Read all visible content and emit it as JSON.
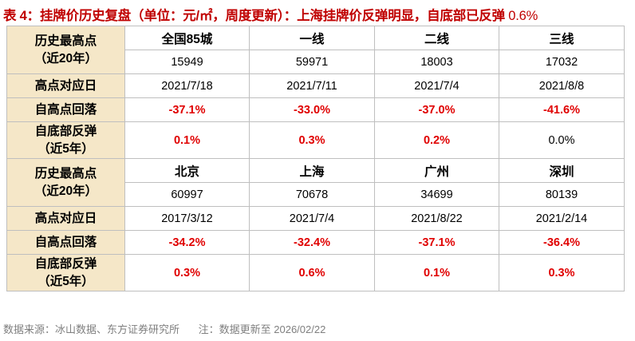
{
  "title": {
    "main": "表 4：挂牌价历史复盘（单位：元/㎡，周度更新）：上海挂牌价反弹明显，自底部已反弹",
    "value": "0.6%"
  },
  "labels": {
    "peak_price": "历史最高点\n（近20年）",
    "peak_date": "高点对应日",
    "drop": "自高点回落",
    "rebound": "自底部反弹\n（近5年）"
  },
  "block1": {
    "headers": [
      "全国85城",
      "一线",
      "二线",
      "三线"
    ],
    "peak_price": [
      "15949",
      "59971",
      "18003",
      "17032"
    ],
    "peak_date": [
      "2021/7/18",
      "2021/7/11",
      "2021/7/4",
      "2021/8/8"
    ],
    "drop": [
      "-37.1%",
      "-33.0%",
      "-37.0%",
      "-41.6%"
    ],
    "rebound": [
      "0.1%",
      "0.3%",
      "0.2%",
      "0.0%"
    ]
  },
  "block2": {
    "headers": [
      "北京",
      "上海",
      "广州",
      "深圳"
    ],
    "peak_price": [
      "60997",
      "70678",
      "34699",
      "80139"
    ],
    "peak_date": [
      "2017/3/12",
      "2021/7/4",
      "2021/8/22",
      "2021/2/14"
    ],
    "drop": [
      "-34.2%",
      "-32.4%",
      "-37.1%",
      "-36.4%"
    ],
    "rebound": [
      "0.3%",
      "0.6%",
      "0.1%",
      "0.3%"
    ]
  },
  "source": {
    "text": "数据来源：冰山数据、东方证券研究所",
    "note": "注：数据更新至 2026/02/22"
  }
}
